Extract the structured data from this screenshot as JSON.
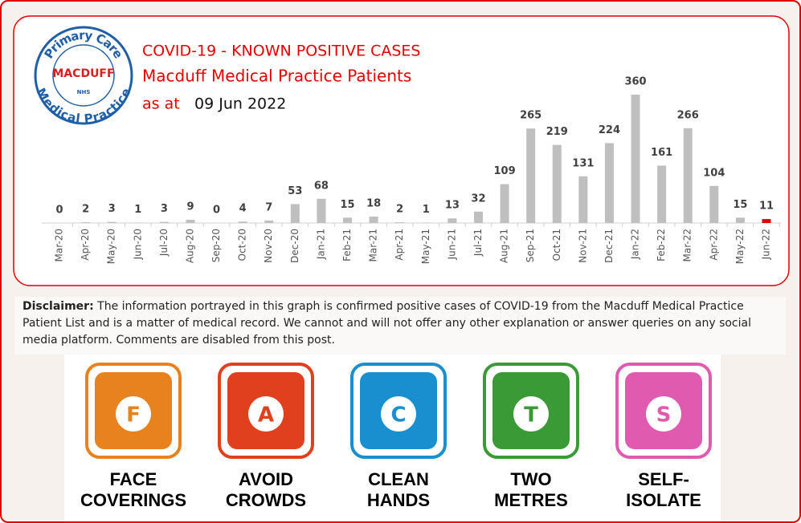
{
  "logo": {
    "top": "Primary Care",
    "middle": "MACDUFF",
    "badge": "NHS",
    "bottom": "Medical Practice"
  },
  "chart_data": {
    "type": "bar",
    "title": "COVID-19 - KNOWN POSITIVE CASES",
    "subtitle": "Macduff Medical Practice Patients",
    "date_prefix": "as at",
    "date": "09 Jun 2022",
    "categories": [
      "Mar-20",
      "Apr-20",
      "May-20",
      "Jun-20",
      "Jul-20",
      "Aug-20",
      "Sep-20",
      "Oct-20",
      "Nov-20",
      "Dec-20",
      "Jan-21",
      "Feb-21",
      "Mar-21",
      "Apr-21",
      "May-21",
      "Jun-21",
      "Jul-21",
      "Aug-21",
      "Sep-21",
      "Oct-21",
      "Nov-21",
      "Dec-21",
      "Jan-22",
      "Feb-22",
      "Mar-22",
      "Apr-22",
      "May-22",
      "Jun-22"
    ],
    "values": [
      0,
      2,
      3,
      1,
      3,
      9,
      0,
      4,
      7,
      53,
      68,
      15,
      18,
      2,
      1,
      13,
      32,
      109,
      265,
      219,
      131,
      224,
      360,
      161,
      266,
      104,
      15,
      11
    ],
    "colors": [
      "#bfbfbf",
      "#bfbfbf",
      "#bfbfbf",
      "#bfbfbf",
      "#bfbfbf",
      "#bfbfbf",
      "#bfbfbf",
      "#bfbfbf",
      "#bfbfbf",
      "#bfbfbf",
      "#bfbfbf",
      "#bfbfbf",
      "#bfbfbf",
      "#bfbfbf",
      "#bfbfbf",
      "#bfbfbf",
      "#bfbfbf",
      "#bfbfbf",
      "#bfbfbf",
      "#bfbfbf",
      "#bfbfbf",
      "#bfbfbf",
      "#bfbfbf",
      "#bfbfbf",
      "#bfbfbf",
      "#bfbfbf",
      "#bfbfbf",
      "#e00000"
    ]
  },
  "disclaimer": {
    "label": "Disclaimer:",
    "text": "The information portrayed in this graph is confirmed positive cases of COVID-19 from the Macduff Medical Practice Patient List and is a matter of medical record.  We cannot and will not offer any other explanation or answer queries on any social media platform.  Comments are disabled from this post."
  },
  "icons": [
    {
      "letter": "F",
      "label": [
        "FACE",
        "COVERINGS"
      ],
      "color": "#e8821e"
    },
    {
      "letter": "A",
      "label": [
        "AVOID",
        "CROWDS"
      ],
      "color": "#e0401e"
    },
    {
      "letter": "C",
      "label": [
        "CLEAN",
        "HANDS"
      ],
      "color": "#1a8fd0"
    },
    {
      "letter": "T",
      "label": [
        "TWO",
        "METRES"
      ],
      "color": "#3a9a35"
    },
    {
      "letter": "S",
      "label": [
        "SELF-",
        "ISOLATE"
      ],
      "color": "#e05ab0"
    }
  ]
}
